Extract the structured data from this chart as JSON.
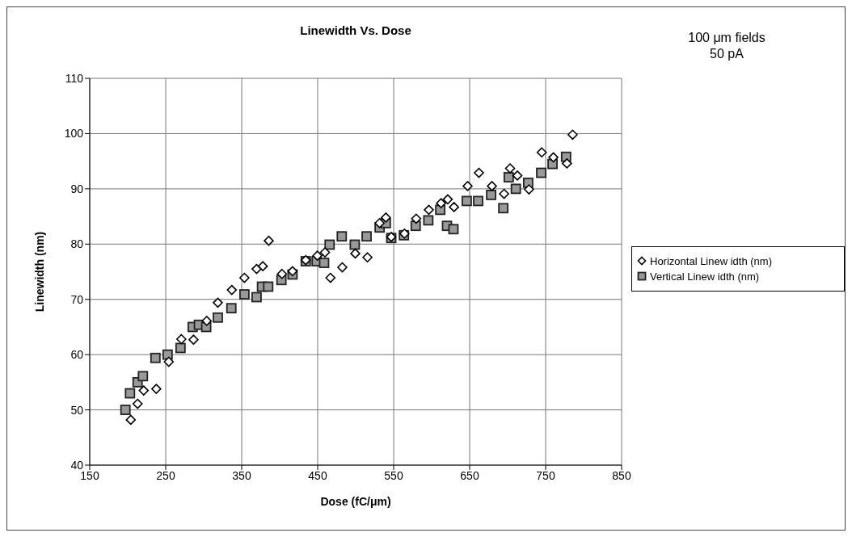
{
  "chart_data": {
    "type": "scatter",
    "title": "Linewidth Vs. Dose",
    "xlabel": "Dose (fC/μm)",
    "ylabel": "Linewidth (nm)",
    "annotations": [
      "100 μm fields",
      "50 pA"
    ],
    "xlim": [
      150,
      850
    ],
    "xticks": [
      150,
      250,
      350,
      450,
      550,
      650,
      750,
      850
    ],
    "ylim": [
      40,
      110
    ],
    "yticks": [
      40,
      50,
      60,
      70,
      80,
      90,
      100,
      110
    ],
    "grid": true,
    "legend": "right",
    "series": [
      {
        "name": "Horizontal Linew idth (nm)",
        "color": "#ffffff",
        "marker": "diamond",
        "x": [
          204,
          213,
          221,
          237.6,
          254,
          270.6,
          286.6,
          304,
          318.6,
          337,
          353.6,
          369.6,
          377.8,
          385.6,
          403,
          416.9,
          434.3,
          449.6,
          459.6,
          466.8,
          482.4,
          499.5,
          515.5,
          531.5,
          539.7,
          546.8,
          564.2,
          579.6,
          596.3,
          612.3,
          621.2,
          629.4,
          647.3,
          662.2,
          679.3,
          695.3,
          703.2,
          712.8,
          728.1,
          744.9,
          760.2,
          778,
          785.5
        ],
        "values": [
          48.2,
          51.1,
          53.5,
          53.8,
          58.7,
          62.8,
          62.7,
          66.1,
          69.4,
          71.7,
          73.9,
          75.5,
          76,
          80.6,
          74.6,
          75.1,
          77.1,
          77.9,
          78.5,
          73.9,
          75.8,
          78.3,
          77.6,
          83.8,
          84.8,
          81.3,
          81.9,
          84.6,
          86.2,
          87.4,
          88.1,
          86.7,
          90.5,
          92.9,
          90.5,
          89.1,
          93.7,
          92.4,
          89.9,
          96.6,
          95.7,
          94.6,
          99.8
        ]
      },
      {
        "name": "Vertical Linew idth (nm)",
        "color": "#999999",
        "marker": "square",
        "x": [
          197,
          203,
          213,
          220,
          236.5,
          252.5,
          269.5,
          285.5,
          293.7,
          303.3,
          318.6,
          336.4,
          353.6,
          369.6,
          376.7,
          384.9,
          402.3,
          416.9,
          434.3,
          448.6,
          458.5,
          465.7,
          481.7,
          498.8,
          514.4,
          531.5,
          539.7,
          546.8,
          563.5,
          579,
          595.6,
          611.3,
          620.2,
          628.7,
          646.2,
          661.2,
          678.3,
          694.3,
          701.4,
          710.8,
          727,
          744.2,
          759.1,
          776.9
        ],
        "values": [
          50,
          53,
          55,
          56.1,
          59.4,
          60,
          61.2,
          65,
          65.4,
          65,
          66.7,
          68.4,
          70.9,
          70.4,
          72.3,
          72.3,
          73.5,
          74.5,
          76.9,
          76.9,
          76.6,
          79.9,
          81.4,
          79.9,
          81.4,
          83,
          83.8,
          81.1,
          81.6,
          83.3,
          84.3,
          86.2,
          83.3,
          82.7,
          87.8,
          87.8,
          88.9,
          86.5,
          92.1,
          90,
          91.1,
          92.9,
          94.5,
          95.8
        ]
      }
    ]
  }
}
